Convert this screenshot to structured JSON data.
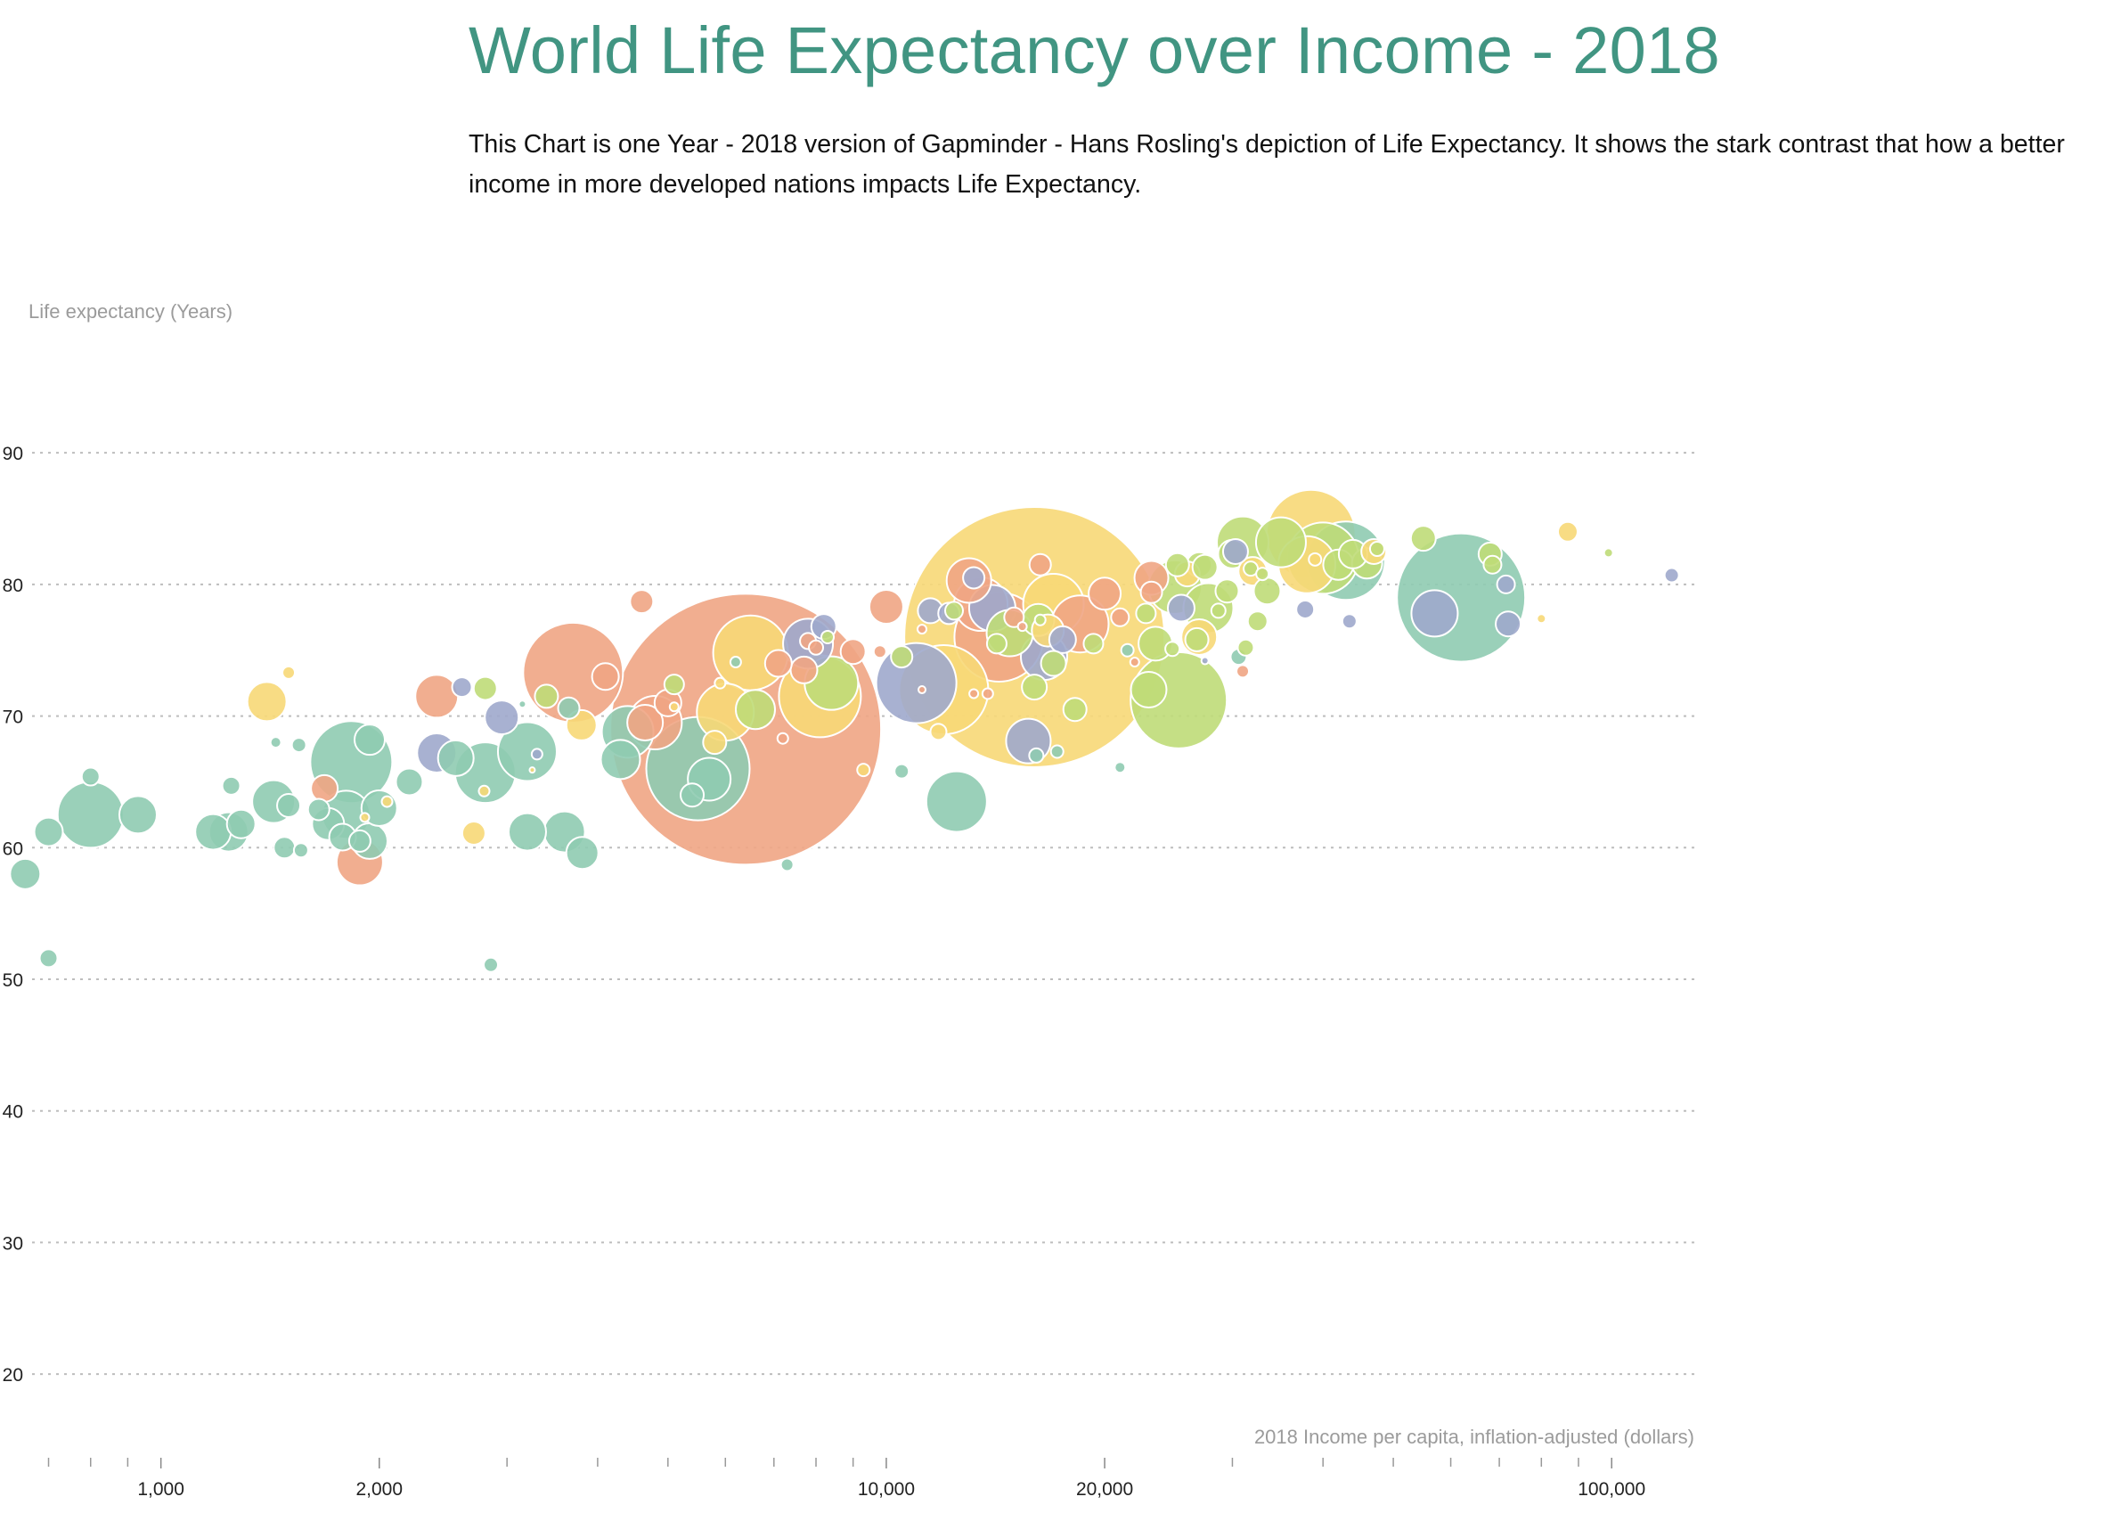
{
  "page": {
    "title": "World Life Expectancy over Income - 2018",
    "description": "This Chart is one Year - 2018 version of Gapminder - Hans Rosling's depiction of Life Expectancy. It shows the stark contrast that how a better income in more developed nations impacts Life Expectancy.",
    "title_color": "#419582"
  },
  "chart_data": {
    "type": "scatter",
    "ylabel": "Life expectancy (Years)",
    "xlabel": "2018 Income per capita, inflation-adjusted (dollars)",
    "x_scale": "log",
    "xlim": [
      600,
      130000
    ],
    "ylim": [
      15,
      98
    ],
    "grid": true,
    "y_ticks": [
      20,
      30,
      40,
      50,
      60,
      70,
      80,
      90
    ],
    "x_tick_labels": [
      {
        "value": 1000,
        "label": "1,000"
      },
      {
        "value": 2000,
        "label": "2,000"
      },
      {
        "value": 10000,
        "label": "10,000"
      },
      {
        "value": 20000,
        "label": "20,000"
      },
      {
        "value": 100000,
        "label": "100,000"
      }
    ],
    "x_minor_ticks": [
      700,
      800,
      900,
      3000,
      4000,
      5000,
      6000,
      7000,
      8000,
      9000,
      30000,
      40000,
      50000,
      60000,
      70000,
      80000,
      90000
    ],
    "region_colors": {
      "africa": "#8fcbb1",
      "asia": "#f0a584",
      "americas": "#f7d877",
      "europe": "#bfdc78",
      "other": "#9fa8cc"
    },
    "points": [
      {
        "x": 6400,
        "y": 69,
        "r": 152,
        "c": "asia"
      },
      {
        "x": 16000,
        "y": 76,
        "r": 146,
        "c": "americas"
      },
      {
        "x": 62000,
        "y": 79,
        "r": 72,
        "c": "africa"
      },
      {
        "x": 5500,
        "y": 66,
        "r": 58,
        "c": "africa"
      },
      {
        "x": 3700,
        "y": 73.3,
        "r": 56,
        "c": "asia"
      },
      {
        "x": 1830,
        "y": 66.5,
        "r": 46,
        "c": "africa"
      },
      {
        "x": 14300,
        "y": 76,
        "r": 50,
        "c": "asia"
      },
      {
        "x": 25300,
        "y": 71.2,
        "r": 54,
        "c": "europe"
      },
      {
        "x": 12000,
        "y": 72,
        "r": 50,
        "c": "americas"
      },
      {
        "x": 11000,
        "y": 72.5,
        "r": 45,
        "c": "other"
      },
      {
        "x": 8100,
        "y": 71.5,
        "r": 46,
        "c": "americas"
      },
      {
        "x": 38500,
        "y": 83.8,
        "r": 50,
        "c": "americas"
      },
      {
        "x": 6500,
        "y": 74.8,
        "r": 42,
        "c": "americas"
      },
      {
        "x": 43000,
        "y": 81.8,
        "r": 44,
        "c": "africa"
      },
      {
        "x": 18500,
        "y": 77,
        "r": 32,
        "c": "asia"
      },
      {
        "x": 38000,
        "y": 81.5,
        "r": 32,
        "c": "americas"
      },
      {
        "x": 40000,
        "y": 82,
        "r": 40,
        "c": "europe"
      },
      {
        "x": 17000,
        "y": 78.5,
        "r": 34,
        "c": "americas"
      },
      {
        "x": 800,
        "y": 62.5,
        "r": 37,
        "c": "africa"
      },
      {
        "x": 12500,
        "y": 63.5,
        "r": 34,
        "c": "africa"
      },
      {
        "x": 3200,
        "y": 67.3,
        "r": 33,
        "c": "africa"
      },
      {
        "x": 2800,
        "y": 65.7,
        "r": 34,
        "c": "africa"
      },
      {
        "x": 13500,
        "y": 78.5,
        "r": 30,
        "c": "asia"
      },
      {
        "x": 25000,
        "y": 79.8,
        "r": 30,
        "c": "europe"
      },
      {
        "x": 8400,
        "y": 72.5,
        "r": 30,
        "c": "europe"
      },
      {
        "x": 7800,
        "y": 75.5,
        "r": 28,
        "c": "other"
      },
      {
        "x": 4400,
        "y": 68.8,
        "r": 29,
        "c": "africa"
      },
      {
        "x": 4800,
        "y": 69.5,
        "r": 30,
        "c": "asia"
      },
      {
        "x": 6000,
        "y": 70.3,
        "r": 32,
        "c": "americas"
      },
      {
        "x": 14000,
        "y": 78.2,
        "r": 26,
        "c": "other"
      },
      {
        "x": 1800,
        "y": 62.5,
        "r": 27,
        "c": "africa"
      },
      {
        "x": 1430,
        "y": 63.5,
        "r": 24,
        "c": "africa"
      },
      {
        "x": 57000,
        "y": 77.8,
        "r": 26,
        "c": "other"
      },
      {
        "x": 35000,
        "y": 83.2,
        "r": 28,
        "c": "europe"
      },
      {
        "x": 31000,
        "y": 83.2,
        "r": 29,
        "c": "europe"
      },
      {
        "x": 16500,
        "y": 74.5,
        "r": 26,
        "c": "other"
      },
      {
        "x": 14800,
        "y": 76.3,
        "r": 26,
        "c": "europe"
      },
      {
        "x": 27800,
        "y": 78.2,
        "r": 28,
        "c": "europe"
      },
      {
        "x": 4300,
        "y": 66.7,
        "r": 22,
        "c": "africa"
      },
      {
        "x": 2400,
        "y": 71.5,
        "r": 24,
        "c": "asia"
      },
      {
        "x": 3600,
        "y": 61.2,
        "r": 23,
        "c": "africa"
      },
      {
        "x": 1880,
        "y": 58.9,
        "r": 26,
        "c": "asia"
      },
      {
        "x": 1240,
        "y": 61.2,
        "r": 22,
        "c": "africa"
      },
      {
        "x": 930,
        "y": 62.5,
        "r": 21,
        "c": "africa"
      },
      {
        "x": 1400,
        "y": 71.1,
        "r": 22,
        "c": "americas"
      },
      {
        "x": 2400,
        "y": 67.2,
        "r": 22,
        "c": "other"
      },
      {
        "x": 2550,
        "y": 66.8,
        "r": 20,
        "c": "africa"
      },
      {
        "x": 3200,
        "y": 61.2,
        "r": 21,
        "c": "africa"
      },
      {
        "x": 15700,
        "y": 68.1,
        "r": 25,
        "c": "other"
      },
      {
        "x": 5700,
        "y": 65.2,
        "r": 24,
        "c": "africa"
      },
      {
        "x": 13000,
        "y": 80.3,
        "r": 25,
        "c": "asia"
      },
      {
        "x": 20000,
        "y": 79.3,
        "r": 18,
        "c": "asia"
      },
      {
        "x": 6600,
        "y": 70.5,
        "r": 22,
        "c": "europe"
      },
      {
        "x": 10000,
        "y": 78.3,
        "r": 19,
        "c": "asia"
      },
      {
        "x": 23200,
        "y": 80.5,
        "r": 19,
        "c": "asia"
      },
      {
        "x": 23500,
        "y": 75.5,
        "r": 19,
        "c": "europe"
      },
      {
        "x": 27000,
        "y": 76,
        "r": 20,
        "c": "americas"
      },
      {
        "x": 23000,
        "y": 72,
        "r": 20,
        "c": "europe"
      },
      {
        "x": 1180,
        "y": 61.2,
        "r": 20,
        "c": "africa"
      },
      {
        "x": 1940,
        "y": 60.5,
        "r": 20,
        "c": "africa"
      },
      {
        "x": 2000,
        "y": 63,
        "r": 20,
        "c": "africa"
      },
      {
        "x": 1700,
        "y": 61.8,
        "r": 18,
        "c": "africa"
      },
      {
        "x": 1940,
        "y": 68.2,
        "r": 17,
        "c": "africa"
      },
      {
        "x": 2950,
        "y": 69.9,
        "r": 19,
        "c": "other"
      },
      {
        "x": 3810,
        "y": 59.6,
        "r": 18,
        "c": "africa"
      },
      {
        "x": 3800,
        "y": 69.3,
        "r": 17,
        "c": "americas"
      },
      {
        "x": 4650,
        "y": 69.5,
        "r": 20,
        "c": "asia"
      },
      {
        "x": 30000,
        "y": 82.3,
        "r": 16,
        "c": "europe"
      },
      {
        "x": 32000,
        "y": 81,
        "r": 16,
        "c": "americas"
      },
      {
        "x": 42000,
        "y": 81.5,
        "r": 17,
        "c": "europe"
      },
      {
        "x": 44000,
        "y": 82.3,
        "r": 16,
        "c": "europe"
      },
      {
        "x": 46000,
        "y": 81.6,
        "r": 17,
        "c": "europe"
      },
      {
        "x": 30300,
        "y": 82.5,
        "r": 14,
        "c": "other"
      },
      {
        "x": 33500,
        "y": 79.5,
        "r": 15,
        "c": "europe"
      },
      {
        "x": 47000,
        "y": 82.5,
        "r": 14,
        "c": "americas"
      },
      {
        "x": 55000,
        "y": 83.5,
        "r": 14,
        "c": "europe"
      },
      {
        "x": 68000,
        "y": 82.3,
        "r": 13,
        "c": "europe"
      },
      {
        "x": 72000,
        "y": 77,
        "r": 14,
        "c": "other"
      },
      {
        "x": 16200,
        "y": 77.3,
        "r": 18,
        "c": "europe"
      },
      {
        "x": 16700,
        "y": 76.5,
        "r": 18,
        "c": "americas"
      },
      {
        "x": 9000,
        "y": 74.9,
        "r": 14,
        "c": "asia"
      },
      {
        "x": 17500,
        "y": 75.8,
        "r": 15,
        "c": "other"
      },
      {
        "x": 17000,
        "y": 74,
        "r": 14,
        "c": "europe"
      },
      {
        "x": 11500,
        "y": 78,
        "r": 14,
        "c": "other"
      },
      {
        "x": 13200,
        "y": 80.5,
        "r": 12,
        "c": "other"
      },
      {
        "x": 12200,
        "y": 77.8,
        "r": 12,
        "c": "other"
      },
      {
        "x": 8200,
        "y": 76.8,
        "r": 14,
        "c": "other"
      },
      {
        "x": 7700,
        "y": 73.5,
        "r": 15,
        "c": "asia"
      },
      {
        "x": 7100,
        "y": 74,
        "r": 15,
        "c": "asia"
      },
      {
        "x": 5000,
        "y": 71,
        "r": 15,
        "c": "asia"
      },
      {
        "x": 5400,
        "y": 64,
        "r": 13,
        "c": "africa"
      },
      {
        "x": 5800,
        "y": 68,
        "r": 13,
        "c": "americas"
      },
      {
        "x": 27000,
        "y": 81.5,
        "r": 14,
        "c": "europe"
      },
      {
        "x": 26000,
        "y": 80.8,
        "r": 14,
        "c": "americas"
      },
      {
        "x": 25500,
        "y": 78.2,
        "r": 15,
        "c": "other"
      },
      {
        "x": 25200,
        "y": 81.5,
        "r": 13,
        "c": "europe"
      },
      {
        "x": 16000,
        "y": 72.2,
        "r": 14,
        "c": "europe"
      },
      {
        "x": 16300,
        "y": 81.5,
        "r": 12,
        "c": "asia"
      },
      {
        "x": 18200,
        "y": 70.5,
        "r": 13,
        "c": "europe"
      },
      {
        "x": 10500,
        "y": 74.5,
        "r": 12,
        "c": "europe"
      },
      {
        "x": 29500,
        "y": 79.5,
        "r": 13,
        "c": "europe"
      },
      {
        "x": 26800,
        "y": 75.8,
        "r": 13,
        "c": "europe"
      },
      {
        "x": 27500,
        "y": 81.3,
        "r": 14,
        "c": "europe"
      },
      {
        "x": 23200,
        "y": 79.4,
        "r": 12,
        "c": "asia"
      },
      {
        "x": 22800,
        "y": 77.8,
        "r": 11,
        "c": "europe"
      },
      {
        "x": 15000,
        "y": 77.5,
        "r": 11,
        "c": "asia"
      },
      {
        "x": 19300,
        "y": 75.5,
        "r": 11,
        "c": "europe"
      },
      {
        "x": 21000,
        "y": 77.5,
        "r": 10,
        "c": "asia"
      },
      {
        "x": 14200,
        "y": 75.5,
        "r": 11,
        "c": "europe"
      },
      {
        "x": 4100,
        "y": 73,
        "r": 15,
        "c": "asia"
      },
      {
        "x": 4600,
        "y": 78.7,
        "r": 13,
        "c": "asia"
      },
      {
        "x": 3400,
        "y": 71.5,
        "r": 13,
        "c": "europe"
      },
      {
        "x": 3650,
        "y": 70.6,
        "r": 12,
        "c": "africa"
      },
      {
        "x": 2200,
        "y": 65,
        "r": 15,
        "c": "africa"
      },
      {
        "x": 1680,
        "y": 64.5,
        "r": 15,
        "c": "asia"
      },
      {
        "x": 1500,
        "y": 63.2,
        "r": 13,
        "c": "africa"
      },
      {
        "x": 1290,
        "y": 61.8,
        "r": 16,
        "c": "africa"
      },
      {
        "x": 1650,
        "y": 62.9,
        "r": 12,
        "c": "africa"
      },
      {
        "x": 1780,
        "y": 60.8,
        "r": 15,
        "c": "africa"
      },
      {
        "x": 1880,
        "y": 60.5,
        "r": 12,
        "c": "africa"
      },
      {
        "x": 700,
        "y": 61.2,
        "r": 16,
        "c": "africa"
      },
      {
        "x": 650,
        "y": 58,
        "r": 17,
        "c": "africa"
      },
      {
        "x": 1480,
        "y": 60,
        "r": 12,
        "c": "africa"
      },
      {
        "x": 2700,
        "y": 61.1,
        "r": 13,
        "c": "americas"
      },
      {
        "x": 2800,
        "y": 72.1,
        "r": 13,
        "c": "europe"
      },
      {
        "x": 2600,
        "y": 72.2,
        "r": 11,
        "c": "other"
      },
      {
        "x": 1250,
        "y": 64.7,
        "r": 10,
        "c": "africa"
      },
      {
        "x": 800,
        "y": 65.4,
        "r": 10,
        "c": "africa"
      },
      {
        "x": 700,
        "y": 51.6,
        "r": 10,
        "c": "africa"
      },
      {
        "x": 1560,
        "y": 59.8,
        "r": 8,
        "c": "africa"
      },
      {
        "x": 1550,
        "y": 67.8,
        "r": 8,
        "c": "africa"
      },
      {
        "x": 1500,
        "y": 73.3,
        "r": 7,
        "c": "americas"
      },
      {
        "x": 1440,
        "y": 68,
        "r": 6,
        "c": "africa"
      },
      {
        "x": 2850,
        "y": 51.1,
        "r": 8,
        "c": "africa"
      },
      {
        "x": 2790,
        "y": 64.3,
        "r": 6,
        "c": "americas"
      },
      {
        "x": 2050,
        "y": 63.5,
        "r": 6,
        "c": "americas"
      },
      {
        "x": 3300,
        "y": 67.1,
        "r": 6,
        "c": "other"
      },
      {
        "x": 3150,
        "y": 70.9,
        "r": 4,
        "c": "africa"
      },
      {
        "x": 3250,
        "y": 65.9,
        "r": 3,
        "c": "americas"
      },
      {
        "x": 1910,
        "y": 62.3,
        "r": 5,
        "c": "americas"
      },
      {
        "x": 5100,
        "y": 72.4,
        "r": 11,
        "c": "europe"
      },
      {
        "x": 5900,
        "y": 72.5,
        "r": 6,
        "c": "americas"
      },
      {
        "x": 7300,
        "y": 58.7,
        "r": 7,
        "c": "africa"
      },
      {
        "x": 6200,
        "y": 74.1,
        "r": 6,
        "c": "africa"
      },
      {
        "x": 5100,
        "y": 70.7,
        "r": 5,
        "c": "americas"
      },
      {
        "x": 7200,
        "y": 68.3,
        "r": 6,
        "c": "asia"
      },
      {
        "x": 9300,
        "y": 65.9,
        "r": 7,
        "c": "americas"
      },
      {
        "x": 10500,
        "y": 65.8,
        "r": 8,
        "c": "africa"
      },
      {
        "x": 9800,
        "y": 74.9,
        "r": 7,
        "c": "asia"
      },
      {
        "x": 11200,
        "y": 76.6,
        "r": 5,
        "c": "asia"
      },
      {
        "x": 11800,
        "y": 68.8,
        "r": 9,
        "c": "americas"
      },
      {
        "x": 12400,
        "y": 78,
        "r": 10,
        "c": "europe"
      },
      {
        "x": 13800,
        "y": 71.7,
        "r": 6,
        "c": "asia"
      },
      {
        "x": 13200,
        "y": 71.7,
        "r": 5,
        "c": "asia"
      },
      {
        "x": 15400,
        "y": 76.8,
        "r": 5,
        "c": "asia"
      },
      {
        "x": 16100,
        "y": 67,
        "r": 8,
        "c": "africa"
      },
      {
        "x": 17200,
        "y": 67.3,
        "r": 7,
        "c": "africa"
      },
      {
        "x": 16300,
        "y": 77.3,
        "r": 6,
        "c": "europe"
      },
      {
        "x": 11200,
        "y": 72,
        "r": 4,
        "c": "asia"
      },
      {
        "x": 7800,
        "y": 75.7,
        "r": 9,
        "c": "asia"
      },
      {
        "x": 8000,
        "y": 75.2,
        "r": 8,
        "c": "asia"
      },
      {
        "x": 8300,
        "y": 76,
        "r": 7,
        "c": "europe"
      },
      {
        "x": 21000,
        "y": 66.1,
        "r": 6,
        "c": "africa"
      },
      {
        "x": 21500,
        "y": 75,
        "r": 7,
        "c": "africa"
      },
      {
        "x": 22000,
        "y": 74.1,
        "r": 5,
        "c": "asia"
      },
      {
        "x": 24800,
        "y": 75.1,
        "r": 8,
        "c": "europe"
      },
      {
        "x": 27500,
        "y": 74.2,
        "r": 4,
        "c": "other"
      },
      {
        "x": 28700,
        "y": 78,
        "r": 8,
        "c": "europe"
      },
      {
        "x": 30600,
        "y": 74.5,
        "r": 9,
        "c": "africa"
      },
      {
        "x": 31000,
        "y": 73.4,
        "r": 7,
        "c": "asia"
      },
      {
        "x": 31300,
        "y": 75.2,
        "r": 9,
        "c": "europe"
      },
      {
        "x": 32500,
        "y": 77.2,
        "r": 11,
        "c": "europe"
      },
      {
        "x": 31800,
        "y": 81.2,
        "r": 8,
        "c": "europe"
      },
      {
        "x": 33000,
        "y": 80.8,
        "r": 7,
        "c": "europe"
      },
      {
        "x": 37800,
        "y": 78.1,
        "r": 10,
        "c": "other"
      },
      {
        "x": 39000,
        "y": 81.9,
        "r": 7,
        "c": "americas"
      },
      {
        "x": 43500,
        "y": 77.2,
        "r": 8,
        "c": "other"
      },
      {
        "x": 47500,
        "y": 82.7,
        "r": 8,
        "c": "europe"
      },
      {
        "x": 68500,
        "y": 81.5,
        "r": 10,
        "c": "europe"
      },
      {
        "x": 71500,
        "y": 80,
        "r": 10,
        "c": "other"
      },
      {
        "x": 80000,
        "y": 77.4,
        "r": 5,
        "c": "americas"
      },
      {
        "x": 87000,
        "y": 84,
        "r": 11,
        "c": "americas"
      },
      {
        "x": 99000,
        "y": 82.4,
        "r": 5,
        "c": "europe"
      },
      {
        "x": 121000,
        "y": 80.7,
        "r": 8,
        "c": "other"
      }
    ]
  }
}
